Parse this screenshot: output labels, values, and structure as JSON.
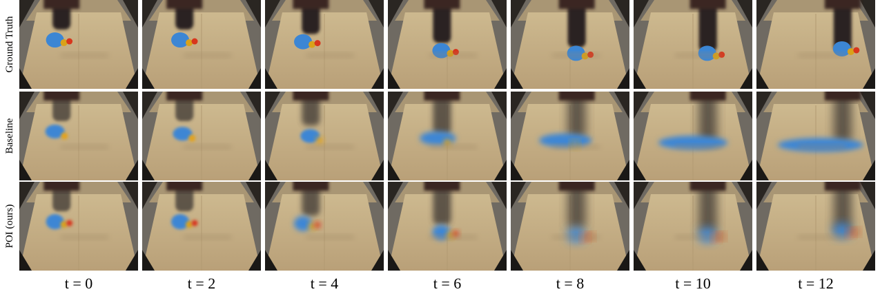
{
  "row_labels": [
    "Ground Truth",
    "Baseline",
    "POI (ours)"
  ],
  "column_labels": [
    "t = 0",
    "t = 2",
    "t = 4",
    "t = 6",
    "t = 8",
    "t = 10",
    "t = 12"
  ]
}
